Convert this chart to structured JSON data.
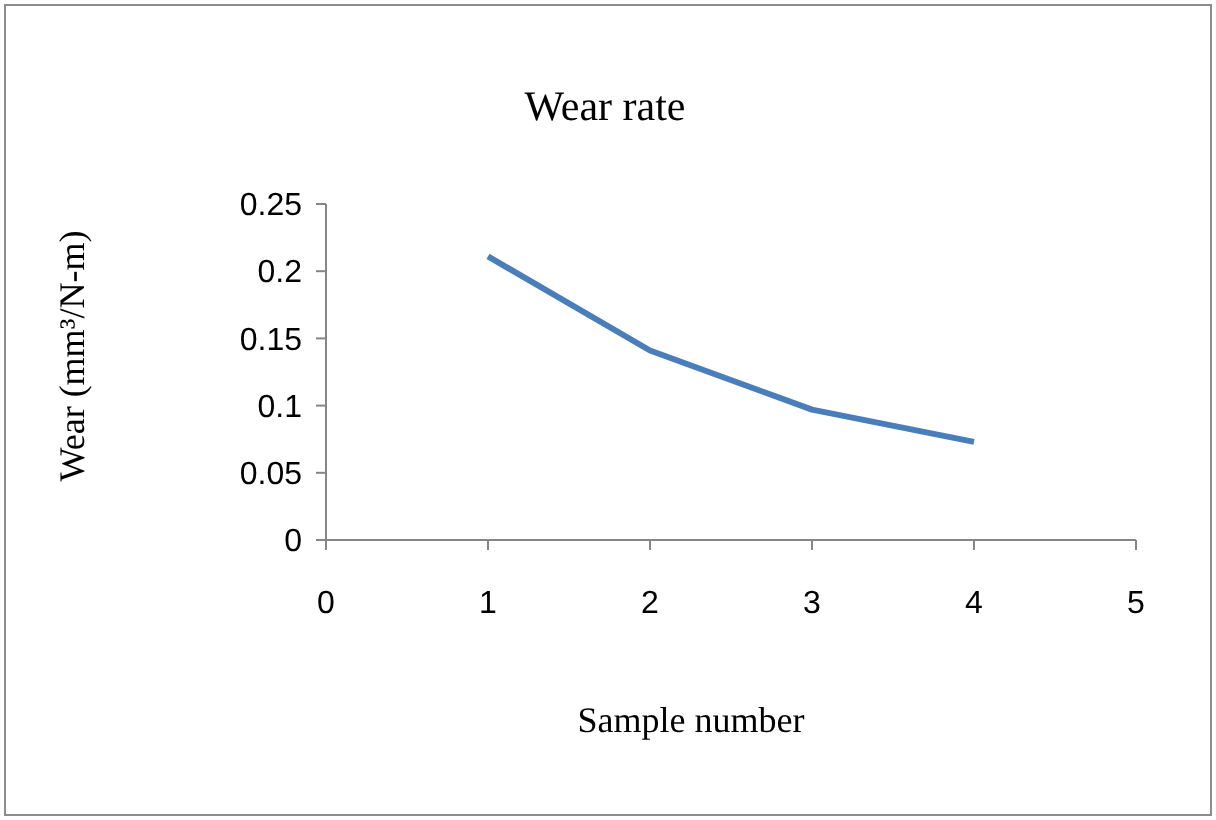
{
  "chart_data": {
    "type": "line",
    "title": "Wear rate",
    "xlabel": "Sample number",
    "ylabel": "Wear (mm³/N-m)",
    "x": [
      1,
      2,
      3,
      4
    ],
    "series": [
      {
        "color": "#4a7ebb",
        "values": [
          0.211,
          0.141,
          0.097,
          0.073
        ]
      }
    ],
    "xlim": [
      0,
      5
    ],
    "xticks": [
      0,
      1,
      2,
      3,
      4,
      5
    ],
    "ylim": [
      0,
      0.25
    ],
    "yticks": [
      0,
      0.05,
      0.1,
      0.15,
      0.2,
      0.25
    ],
    "grid": false,
    "marker": "none",
    "line_style": "solid"
  }
}
